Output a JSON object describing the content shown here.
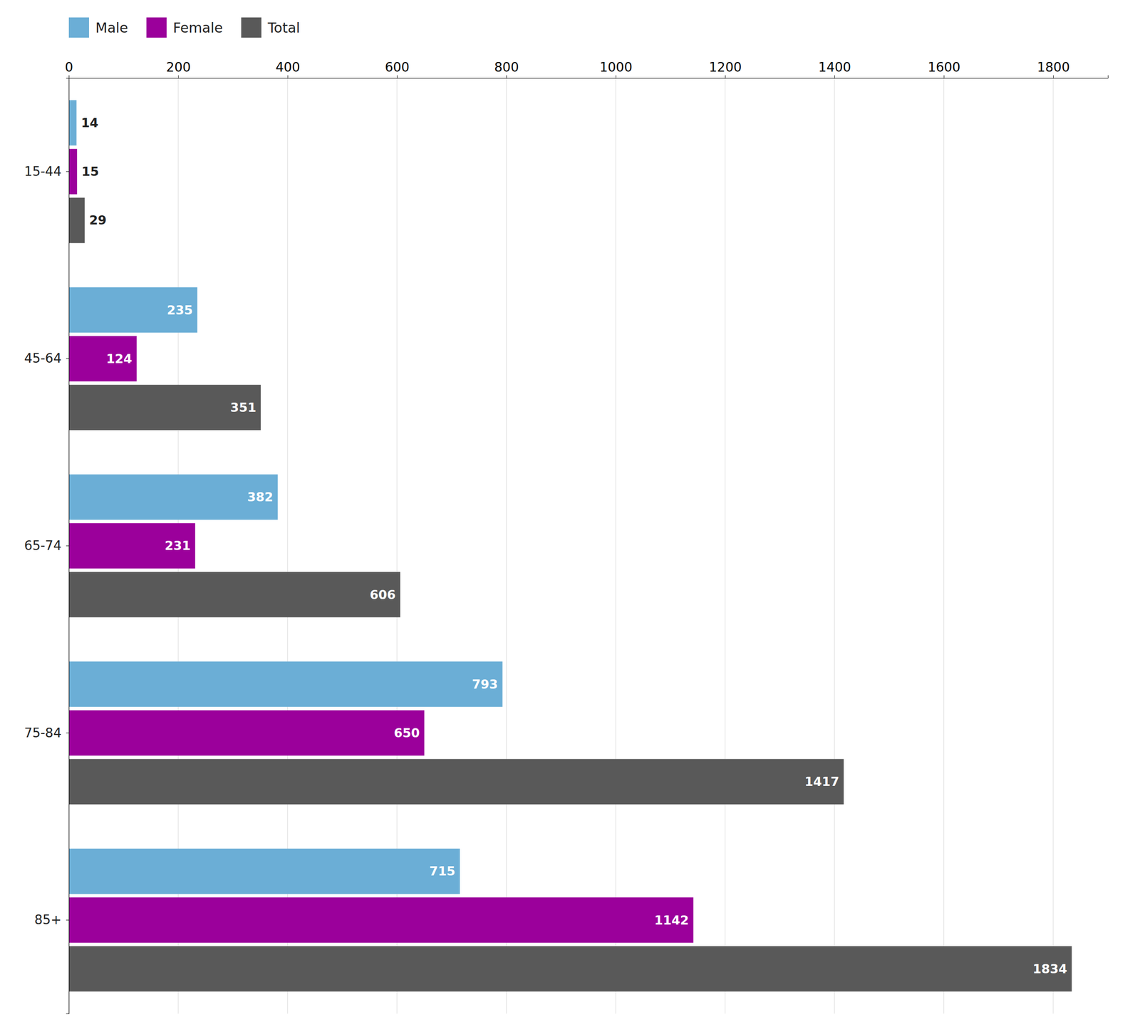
{
  "chart_data": {
    "type": "bar",
    "orientation": "horizontal",
    "categories": [
      "15-44",
      "45-64",
      "65-74",
      "75-84",
      "85+"
    ],
    "series": [
      {
        "name": "Male",
        "color": "#6baed6",
        "values": [
          14,
          235,
          382,
          793,
          715
        ]
      },
      {
        "name": "Female",
        "color": "#9b009b",
        "values": [
          15,
          124,
          231,
          650,
          1142
        ]
      },
      {
        "name": "Total",
        "color": "#595959",
        "values": [
          29,
          351,
          606,
          1417,
          1834
        ]
      }
    ],
    "xlim": [
      0,
      1900
    ],
    "xticks": [
      0,
      200,
      400,
      600,
      800,
      1000,
      1200,
      1400,
      1600,
      1800
    ],
    "grid": true,
    "data_labels": true,
    "legend": "upper left"
  }
}
